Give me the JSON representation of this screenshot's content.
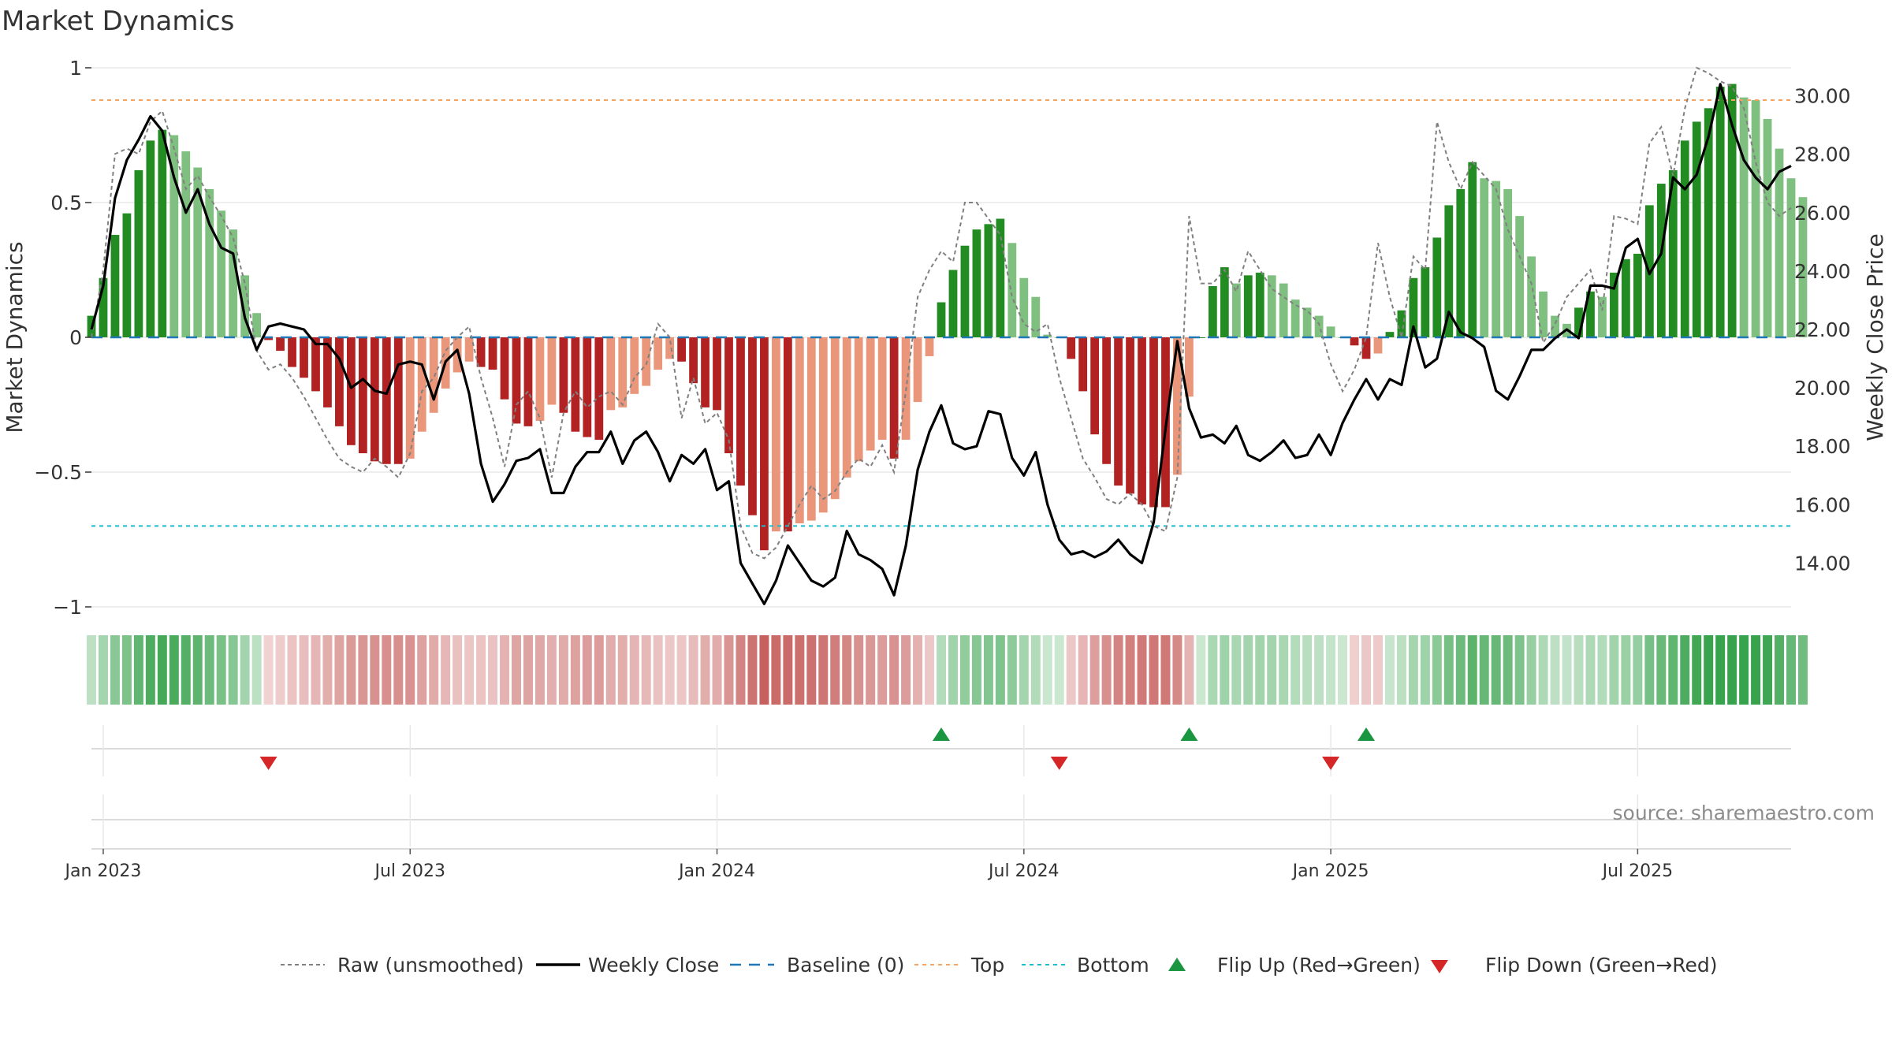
{
  "chart_data": {
    "type": "bar",
    "title": "Market Dynamics",
    "ylabel_left": "Market Dynamics",
    "ylabel_right": "Weekly Close Price",
    "source": "source: sharemaestro.com",
    "ylim_left": [
      -1,
      1
    ],
    "left_ticks": [
      {
        "v": 1,
        "label": "1"
      },
      {
        "v": 0.5,
        "label": "0.5"
      },
      {
        "v": 0,
        "label": "0"
      },
      {
        "v": -0.5,
        "label": "−0.5"
      },
      {
        "v": -1,
        "label": "−1"
      }
    ],
    "ylim_right": [
      12.5,
      31.5
    ],
    "right_ticks": [
      {
        "v": 30,
        "label": "30.00"
      },
      {
        "v": 28,
        "label": "28.00"
      },
      {
        "v": 26,
        "label": "26.00"
      },
      {
        "v": 24,
        "label": "24.00"
      },
      {
        "v": 22,
        "label": "22.00"
      },
      {
        "v": 20,
        "label": "20.00"
      },
      {
        "v": 18,
        "label": "18.00"
      },
      {
        "v": 16,
        "label": "16.00"
      },
      {
        "v": 14,
        "label": "14.00"
      }
    ],
    "x_ticks": [
      {
        "week": 1,
        "label": "Jan 2023"
      },
      {
        "week": 27,
        "label": "Jul 2023"
      },
      {
        "week": 53,
        "label": "Jan 2024"
      },
      {
        "week": 79,
        "label": "Jul 2024"
      },
      {
        "week": 105,
        "label": "Jan 2025"
      },
      {
        "week": 131,
        "label": "Jul 2025"
      }
    ],
    "x_range": [
      0,
      144
    ],
    "top_level": 0.88,
    "bottom_level": -0.7,
    "baseline": 0,
    "series": [
      {
        "name": "Market Dynamics",
        "values": [
          0.08,
          0.22,
          0.38,
          0.46,
          0.62,
          0.73,
          0.77,
          0.75,
          0.69,
          0.63,
          0.55,
          0.47,
          0.4,
          0.23,
          0.09,
          -0.01,
          -0.05,
          -0.11,
          -0.15,
          -0.2,
          -0.26,
          -0.33,
          -0.4,
          -0.43,
          -0.46,
          -0.47,
          -0.47,
          -0.45,
          -0.35,
          -0.28,
          -0.19,
          -0.13,
          -0.09,
          -0.11,
          -0.12,
          -0.23,
          -0.32,
          -0.33,
          -0.31,
          -0.25,
          -0.28,
          -0.35,
          -0.37,
          -0.38,
          -0.27,
          -0.26,
          -0.21,
          -0.18,
          -0.12,
          -0.08,
          -0.09,
          -0.17,
          -0.26,
          -0.27,
          -0.43,
          -0.55,
          -0.66,
          -0.79,
          -0.72,
          -0.72,
          -0.69,
          -0.68,
          -0.65,
          -0.6,
          -0.52,
          -0.46,
          -0.42,
          -0.38,
          -0.45,
          -0.38,
          -0.24,
          -0.07,
          0.13,
          0.25,
          0.34,
          0.4,
          0.42,
          0.44,
          0.35,
          0.22,
          0.15,
          0.01,
          0.0,
          -0.08,
          -0.2,
          -0.36,
          -0.47,
          -0.55,
          -0.58,
          -0.62,
          -0.63,
          -0.63,
          -0.51,
          -0.22,
          0.0,
          0.19,
          0.26,
          0.2,
          0.23,
          0.24,
          0.23,
          0.2,
          0.14,
          0.11,
          0.08,
          0.04,
          0.0,
          -0.03,
          -0.08,
          -0.06,
          0.02,
          0.1,
          0.22,
          0.26,
          0.37,
          0.49,
          0.55,
          0.65,
          0.59,
          0.58,
          0.55,
          0.45,
          0.3,
          0.17,
          0.08,
          0.05,
          0.11,
          0.17,
          0.15,
          0.24,
          0.29,
          0.31,
          0.49,
          0.57,
          0.62,
          0.73,
          0.8,
          0.85,
          0.93,
          0.94,
          0.89,
          0.88,
          0.81,
          0.7,
          0.59,
          0.52
        ]
      },
      {
        "name": "Raw (unsmoothed)",
        "values": [
          0.0,
          0.25,
          0.68,
          0.7,
          0.68,
          0.8,
          0.84,
          0.7,
          0.55,
          0.6,
          0.52,
          0.45,
          0.37,
          0.2,
          -0.05,
          -0.12,
          -0.1,
          -0.15,
          -0.22,
          -0.3,
          -0.38,
          -0.45,
          -0.48,
          -0.5,
          -0.45,
          -0.48,
          -0.52,
          -0.43,
          -0.2,
          -0.15,
          -0.05,
          0.0,
          0.04,
          -0.15,
          -0.3,
          -0.48,
          -0.25,
          -0.2,
          -0.3,
          -0.52,
          -0.28,
          -0.2,
          -0.26,
          -0.22,
          -0.2,
          -0.25,
          -0.15,
          -0.1,
          0.05,
          0.0,
          -0.3,
          -0.15,
          -0.32,
          -0.28,
          -0.38,
          -0.7,
          -0.8,
          -0.82,
          -0.78,
          -0.7,
          -0.62,
          -0.55,
          -0.6,
          -0.57,
          -0.5,
          -0.45,
          -0.48,
          -0.4,
          -0.5,
          -0.2,
          0.15,
          0.25,
          0.32,
          0.28,
          0.5,
          0.5,
          0.44,
          0.38,
          0.15,
          0.05,
          0.02,
          0.05,
          -0.15,
          -0.3,
          -0.45,
          -0.52,
          -0.6,
          -0.62,
          -0.58,
          -0.62,
          -0.7,
          -0.72,
          -0.52,
          0.45,
          0.2,
          0.2,
          0.25,
          0.17,
          0.32,
          0.25,
          0.18,
          0.15,
          0.12,
          0.1,
          0.05,
          -0.1,
          -0.2,
          -0.12,
          0.0,
          0.35,
          0.15,
          0.0,
          0.3,
          0.25,
          0.8,
          0.65,
          0.55,
          0.65,
          0.6,
          0.55,
          0.4,
          0.3,
          0.2,
          -0.02,
          0.05,
          0.15,
          0.2,
          0.25,
          0.1,
          0.45,
          0.44,
          0.42,
          0.72,
          0.78,
          0.6,
          0.85,
          1.0,
          0.98,
          0.95,
          0.93,
          0.85,
          0.65,
          0.5,
          0.45,
          0.48
        ]
      },
      {
        "name": "Weekly Close",
        "values": [
          22.0,
          23.5,
          26.5,
          27.8,
          28.5,
          29.3,
          28.8,
          27.2,
          26.0,
          26.8,
          25.6,
          24.8,
          24.6,
          22.4,
          21.3,
          22.1,
          22.2,
          22.1,
          22.0,
          21.5,
          21.5,
          21.0,
          20.0,
          20.3,
          19.9,
          19.8,
          20.8,
          20.9,
          20.8,
          19.6,
          20.9,
          21.3,
          19.8,
          17.4,
          16.1,
          16.7,
          17.5,
          17.6,
          17.9,
          16.4,
          16.4,
          17.3,
          17.8,
          17.8,
          18.5,
          17.4,
          18.2,
          18.5,
          17.8,
          16.8,
          17.7,
          17.4,
          17.9,
          16.5,
          16.8,
          14.0,
          13.3,
          12.6,
          13.4,
          14.6,
          14.0,
          13.4,
          13.2,
          13.5,
          15.1,
          14.3,
          14.1,
          13.8,
          12.9,
          14.6,
          17.2,
          18.5,
          19.4,
          18.1,
          17.9,
          18.0,
          19.2,
          19.1,
          17.6,
          17.0,
          17.8,
          16.0,
          14.8,
          14.3,
          14.4,
          14.2,
          14.4,
          14.8,
          14.3,
          14.0,
          15.4,
          18.6,
          21.6,
          19.3,
          18.3,
          18.4,
          18.1,
          18.7,
          17.7,
          17.5,
          17.8,
          18.2,
          17.6,
          17.7,
          18.4,
          17.7,
          18.8,
          19.6,
          20.3,
          19.6,
          20.3,
          20.1,
          22.1,
          20.7,
          21.0,
          22.6,
          21.9,
          21.7,
          21.4,
          19.9,
          19.6,
          20.4,
          21.3,
          21.3,
          21.7,
          22.0,
          21.7,
          23.5,
          23.5,
          23.4,
          24.8,
          25.1,
          23.9,
          24.6,
          27.2,
          26.8,
          27.3,
          28.6,
          30.4,
          29.0,
          27.8,
          27.2,
          26.8,
          27.4,
          27.6
        ]
      }
    ],
    "legend": {
      "placement": "bottom-center",
      "entries": [
        "Raw (unsmoothed)",
        "Weekly Close",
        "Baseline (0)",
        "Top",
        "Bottom",
        "Flip Up (Red→Green)",
        "Flip Down (Green→Red)"
      ]
    },
    "flip_up_weeks": [
      72,
      93,
      108
    ],
    "flip_down_weeks": [
      15,
      82,
      105
    ],
    "colors": {
      "bull_strong": "#228b22",
      "bull_weak": "#7fbf7f",
      "bear_strong": "#b22222",
      "bear_weak": "#e9967a",
      "raw": "#808080",
      "close": "#000000",
      "baseline": "#1f77b4",
      "top": "#f4a460",
      "bottom": "#17becf",
      "flip_up": "#1a9641",
      "flip_down": "#d62728",
      "grid": "#e8e8e8",
      "text": "#333333"
    },
    "grid": true
  }
}
